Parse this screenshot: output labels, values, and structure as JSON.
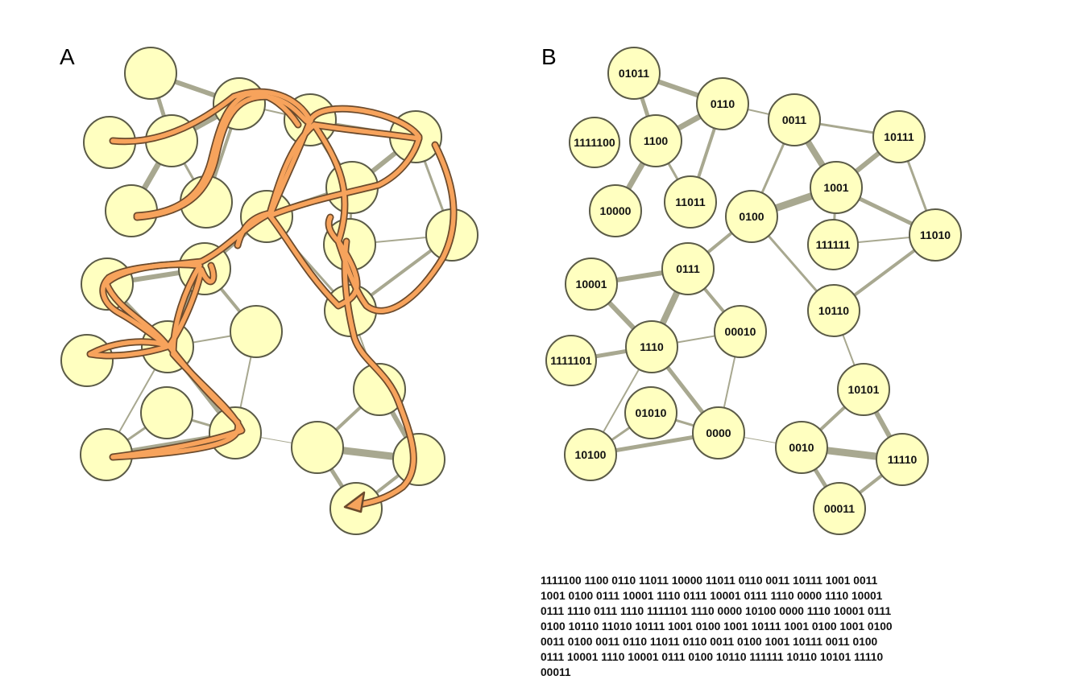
{
  "panels": {
    "a_label": "A",
    "b_label": "B"
  },
  "colors": {
    "node_fill": "#ffffc0",
    "node_stroke": "#5b5b47",
    "edge": "#a8a890",
    "path_fill": "#f7a35c",
    "path_outline": "#6b4a2c",
    "background": "#ffffff"
  },
  "panel_b": {
    "node_labels": [
      "01011",
      "0110",
      "0011",
      "1111100",
      "1100",
      "10111",
      "10000",
      "11011",
      "1001",
      "0100",
      "111111",
      "11010",
      "10001",
      "0111",
      "00010",
      "10110",
      "1111101",
      "1110",
      "10101",
      "01010",
      "0000",
      "10100",
      "0010",
      "11110",
      "00011"
    ]
  },
  "sequence_lines": [
    "1111100 1100 0110 11011 10000 11011 0110 0011 10111 1001 0011",
    "1001 0100 0111 10001 1110 0111 10001 0111 1110 0000 1110 10001",
    "0111 1110 0111 1110 1111101 1110 0000 10100 0000 1110 10001 0111",
    "0100 10110 11010 10111 1001 0100 1001 10111 1001 0100 1001 0100",
    "0011 0100 0011 0110 11011 0110 0011 0100 1001 10111 0011 0100",
    "0111 10001 1110 10001 0111 0100 10110 111111 10110 10101 11110",
    "00011"
  ]
}
